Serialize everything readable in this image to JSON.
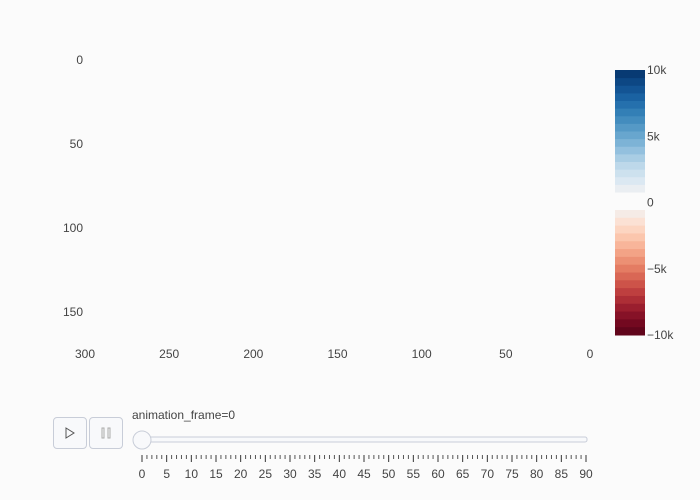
{
  "chart_data": {
    "type": "heatmap",
    "x": {
      "range": [
        300,
        0
      ],
      "tick_labels": [
        "300",
        "250",
        "200",
        "150",
        "100",
        "50",
        "0"
      ],
      "tick_values": [
        300,
        250,
        200,
        150,
        100,
        50,
        0
      ]
    },
    "y": {
      "range": [
        0,
        170
      ],
      "tick_labels": [
        "0",
        "50",
        "100",
        "150"
      ],
      "tick_values": [
        0,
        50,
        100,
        150
      ]
    },
    "z": [],
    "colorbar": {
      "range": [
        -10000,
        10000
      ],
      "tick_labels": [
        "10k",
        "5k",
        "0",
        "−5k",
        "−10k"
      ],
      "tick_values": [
        10000,
        5000,
        0,
        -5000,
        -10000
      ],
      "colors_positive": [
        "#eaeef2",
        "#dbe8f2",
        "#cde1ee",
        "#bdd8ea",
        "#a9cde4",
        "#93c0de",
        "#7db3d6",
        "#68a6ce",
        "#5599c6",
        "#438cbe",
        "#337fb6",
        "#2570ad",
        "#1a62a2",
        "#135494",
        "#0d4784",
        "#083a73"
      ],
      "colors_negative": [
        "#f5ebe6",
        "#fbe1d4",
        "#fcd5c1",
        "#fbc6ad",
        "#f8b59a",
        "#f3a386",
        "#ec9074",
        "#e47c63",
        "#d96755",
        "#cd5349",
        "#be3f3f",
        "#ad2e36",
        "#9a1e2e",
        "#861227",
        "#730920",
        "#61051b"
      ]
    }
  },
  "slider": {
    "title_prefix": "animation_frame=",
    "current_value": "0",
    "tick_labels": [
      "0",
      "5",
      "10",
      "15",
      "20",
      "25",
      "30",
      "35",
      "40",
      "45",
      "50",
      "55",
      "60",
      "65",
      "70",
      "75",
      "80",
      "85",
      "90"
    ],
    "tick_values": [
      0,
      5,
      10,
      15,
      20,
      25,
      30,
      35,
      40,
      45,
      50,
      55,
      60,
      65,
      70,
      75,
      80,
      85,
      90
    ]
  },
  "controls": {
    "play_icon": "play-icon",
    "pause_icon": "pause-icon"
  }
}
